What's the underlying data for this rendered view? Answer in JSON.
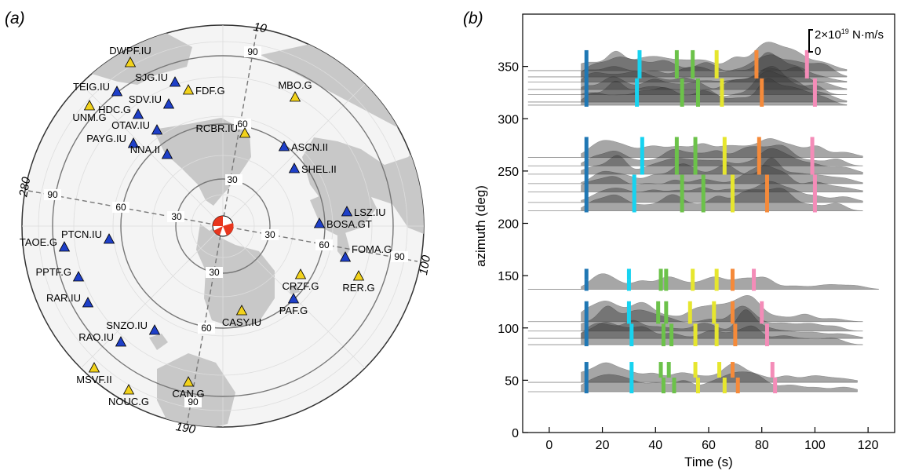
{
  "panel_a": {
    "label": "(a)",
    "center_labels": {
      "n10": "10",
      "n100": "100",
      "n190": "190",
      "n280": "280"
    },
    "distance_labels": {
      "top_30": "30",
      "top_60": "60",
      "top_90": "90",
      "left_30": "30",
      "left_60": "60",
      "left_90": "90",
      "right_30": "30",
      "right_60": "60",
      "right_90": "90",
      "bot_30": "30",
      "bot_60": "60",
      "bot_90": "90"
    },
    "stations": [
      {
        "name": "DWPF.IU",
        "color": "yellow"
      },
      {
        "name": "SJG.IU",
        "color": "blue"
      },
      {
        "name": "FDF.G",
        "color": "yellow"
      },
      {
        "name": "TEIG.IU",
        "color": "blue"
      },
      {
        "name": "MBO.G",
        "color": "yellow"
      },
      {
        "name": "SDV.IU",
        "color": "blue"
      },
      {
        "name": "UNM.G",
        "color": "yellow"
      },
      {
        "name": "HDC.G",
        "color": "blue"
      },
      {
        "name": "OTAV.IU",
        "color": "blue"
      },
      {
        "name": "PAYG.IU",
        "color": "blue"
      },
      {
        "name": "RCBR.IU",
        "color": "yellow"
      },
      {
        "name": "ASCN.II",
        "color": "blue"
      },
      {
        "name": "NNA.II",
        "color": "blue"
      },
      {
        "name": "SHEL.II",
        "color": "blue"
      },
      {
        "name": "LSZ.IU",
        "color": "blue"
      },
      {
        "name": "BOSA.GT",
        "color": "blue"
      },
      {
        "name": "PTCN.IU",
        "color": "blue"
      },
      {
        "name": "TAOE.G",
        "color": "blue"
      },
      {
        "name": "FOMA.G",
        "color": "blue"
      },
      {
        "name": "PPTF.G",
        "color": "blue"
      },
      {
        "name": "CRZF.G",
        "color": "yellow"
      },
      {
        "name": "RER.G",
        "color": "yellow"
      },
      {
        "name": "RAR.IU",
        "color": "blue"
      },
      {
        "name": "PAF.G",
        "color": "blue"
      },
      {
        "name": "CASY.IU",
        "color": "yellow"
      },
      {
        "name": "SNZO.IU",
        "color": "blue"
      },
      {
        "name": "RAO.IU",
        "color": "blue"
      },
      {
        "name": "MSVF.II",
        "color": "yellow"
      },
      {
        "name": "CAN.G",
        "color": "yellow"
      },
      {
        "name": "NOUC.G",
        "color": "yellow"
      }
    ],
    "colors": {
      "yellow": "#f2d21b",
      "blue": "#1e3fc8",
      "land": "#c8c8c8",
      "sea": "#f4f4f4"
    }
  },
  "panel_b": {
    "label": "(b)",
    "scale_bar": {
      "top": "2×10",
      "exp": "19",
      "unit": " N·m/s",
      "zero": "0"
    },
    "colors": [
      "#1f77b4",
      "#17d3f0",
      "#6cc24a",
      "#e6e62e",
      "#f58a3a",
      "#f48cb8"
    ],
    "chart_data": {
      "type": "area",
      "xlabel": "Time (s)",
      "ylabel": "azimuth (deg)",
      "xlim": [
        -10,
        130
      ],
      "ylim": [
        0,
        400
      ],
      "xticks": [
        0,
        20,
        40,
        60,
        80,
        100,
        120
      ],
      "yticks": [
        0,
        50,
        100,
        150,
        200,
        250,
        300,
        350
      ],
      "grid": false,
      "groups": [
        {
          "baselines": [
            346,
            340,
            335,
            328,
            323,
            316,
            313
          ],
          "t_end": 112,
          "peaks": [
            [
              15,
              0.7
            ],
            [
              25,
              1.0
            ],
            [
              33,
              0.6
            ],
            [
              41,
              0.8
            ],
            [
              50,
              0.5
            ],
            [
              58,
              0.7
            ],
            [
              70,
              0.6
            ],
            [
              80,
              1.2
            ],
            [
              86,
              1.0
            ],
            [
              93,
              0.8
            ],
            [
              102,
              0.5
            ]
          ],
          "markers": [
            [
              14,
              14
            ],
            [
              34,
              33
            ],
            [
              48,
              50
            ],
            [
              54,
              56
            ],
            [
              63,
              65
            ],
            [
              78,
              80
            ],
            [
              97,
              100
            ]
          ]
        },
        {
          "baselines": [
            263,
            255,
            247,
            238,
            230,
            220,
            212
          ],
          "t_end": 118,
          "peaks": [
            [
              18,
              0.6
            ],
            [
              26,
              0.9
            ],
            [
              38,
              0.5
            ],
            [
              48,
              0.9
            ],
            [
              57,
              0.6
            ],
            [
              65,
              0.8
            ],
            [
              74,
              0.6
            ],
            [
              82,
              1.3
            ],
            [
              90,
              0.8
            ],
            [
              100,
              0.5
            ],
            [
              110,
              0.4
            ]
          ],
          "markers": [
            [
              14,
              14
            ],
            [
              35,
              32
            ],
            [
              48,
              50
            ],
            [
              55,
              58
            ],
            [
              66,
              69
            ],
            [
              79,
              82
            ],
            [
              99,
              100
            ]
          ]
        },
        {
          "baselines": [
            137
          ],
          "t_end": 124,
          "peaks": [
            [
              17,
              0.5
            ],
            [
              21,
              1.0
            ],
            [
              33,
              0.5
            ],
            [
              43,
              0.6
            ],
            [
              54,
              0.4
            ],
            [
              61,
              0.5
            ],
            [
              72,
              0.9
            ],
            [
              80,
              0.5
            ],
            [
              90,
              0.3
            ],
            [
              104,
              0.3
            ],
            [
              114,
              0.3
            ]
          ],
          "markers": [
            [
              14
            ],
            [
              30
            ],
            [
              42
            ],
            [
              44
            ],
            [
              54
            ],
            [
              63
            ],
            [
              69
            ],
            [
              77
            ]
          ]
        },
        {
          "baselines": [
            106,
            97,
            90,
            84
          ],
          "t_end": 118,
          "peaks": [
            [
              15,
              0.6
            ],
            [
              22,
              1.0
            ],
            [
              30,
              0.8
            ],
            [
              37,
              0.9
            ],
            [
              46,
              0.6
            ],
            [
              56,
              0.5
            ],
            [
              62,
              0.6
            ],
            [
              72,
              1.3
            ],
            [
              78,
              0.8
            ],
            [
              88,
              0.4
            ],
            [
              98,
              0.4
            ],
            [
              108,
              0.3
            ]
          ],
          "markers": [
            [
              14,
              14
            ],
            [
              30,
              31
            ],
            [
              41,
              43
            ],
            [
              44,
              46
            ],
            [
              53,
              55
            ],
            [
              62,
              63
            ],
            [
              69,
              70
            ],
            [
              80,
              82
            ]
          ]
        },
        {
          "baselines": [
            48,
            39
          ],
          "t_end": 116,
          "peaks": [
            [
              14,
              0.5
            ],
            [
              22,
              1.0
            ],
            [
              30,
              0.6
            ],
            [
              40,
              0.6
            ],
            [
              50,
              0.5
            ],
            [
              60,
              0.5
            ],
            [
              70,
              1.0
            ],
            [
              78,
              0.8
            ],
            [
              90,
              0.4
            ],
            [
              100,
              0.3
            ],
            [
              110,
              0.3
            ]
          ],
          "markers": [
            [
              14,
              14
            ],
            [
              31,
              31
            ],
            [
              42,
              43
            ],
            [
              45,
              47
            ],
            [
              55,
              56
            ],
            [
              64,
              66
            ],
            [
              69,
              71
            ],
            [
              84,
              85
            ]
          ]
        }
      ]
    },
    "x_tick_labels": [
      "0",
      "20",
      "40",
      "60",
      "80",
      "100",
      "120"
    ],
    "y_tick_labels": [
      "0",
      "50",
      "100",
      "150",
      "200",
      "250",
      "300",
      "350"
    ]
  }
}
